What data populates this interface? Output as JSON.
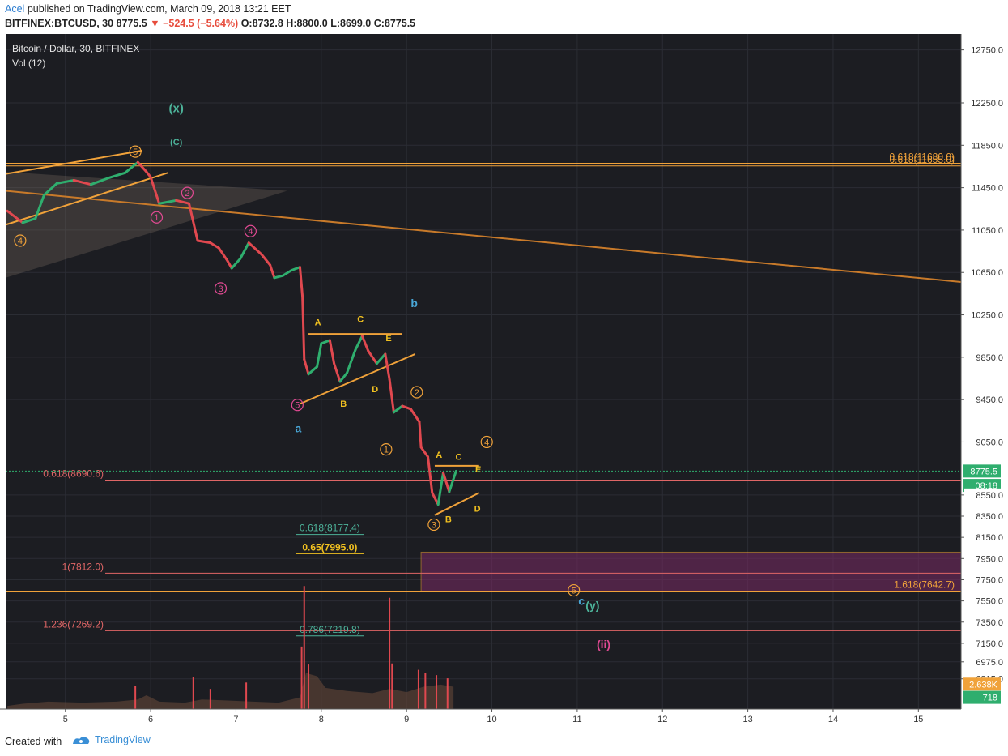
{
  "header": {
    "author": "Acel",
    "published": "published on TradingView.com, March 09, 2018 13:21 EET",
    "symbol": "BITFINEX:BTCUSD, 30",
    "last": "8775.5",
    "change": "▼ −524.5 (−5.64%)",
    "ohlc": "O:8732.8 H:8800.0 L:8699.0 C:8775.5"
  },
  "footer": {
    "created": "Created with",
    "brand": "TradingView"
  },
  "colors": {
    "up": "#2fae6e",
    "down": "#e0484f",
    "orange": "#f0a23a",
    "fib_red": "#e06666",
    "teal": "#4db39a",
    "magenta": "#e24a93",
    "blue": "#49a6d6",
    "bg": "#1c1d22"
  },
  "chart_data": {
    "type": "candlestick",
    "title": "Bitcoin / Dollar, 30, BITFINEX",
    "volume_label": "Vol (12)",
    "ylim": [
      6530,
      12900
    ],
    "xlim": [
      4.3,
      15.5
    ],
    "x_ticks": [
      "5",
      "6",
      "7",
      "8",
      "9",
      "10",
      "11",
      "12",
      "13",
      "14",
      "15"
    ],
    "y_ticks": [
      "12750.0",
      "12250.0",
      "11850.0",
      "11450.0",
      "11050.0",
      "10650.0",
      "10250.0",
      "9850.0",
      "9450.0",
      "9050.0",
      "8550.0",
      "8350.0",
      "8150.0",
      "7950.0",
      "7750.0",
      "7550.0",
      "7350.0",
      "7150.0",
      "6975.0",
      "6815.0"
    ],
    "price_badges": [
      {
        "label": "8775.5",
        "value": 8775.5,
        "color": "#2fae6e"
      },
      {
        "label": "08:18",
        "value": 8640,
        "color": "#2fae6e"
      },
      {
        "label": "8550.0",
        "value": 8550,
        "color": "plain"
      },
      {
        "label": "2.638K",
        "value": 6765,
        "color": "#f0a23a"
      },
      {
        "label": "718",
        "value": 6640,
        "color": "#2fae6e"
      }
    ],
    "price_path": [
      [
        4.32,
        11230
      ],
      [
        4.5,
        11120
      ],
      [
        4.65,
        11160
      ],
      [
        4.75,
        11380
      ],
      [
        4.9,
        11490
      ],
      [
        5.1,
        11520
      ],
      [
        5.3,
        11480
      ],
      [
        5.5,
        11540
      ],
      [
        5.7,
        11590
      ],
      [
        5.85,
        11690
      ],
      [
        5.95,
        11600
      ],
      [
        6.0,
        11550
      ],
      [
        6.1,
        11300
      ],
      [
        6.3,
        11330
      ],
      [
        6.45,
        11300
      ],
      [
        6.55,
        10950
      ],
      [
        6.7,
        10930
      ],
      [
        6.8,
        10880
      ],
      [
        6.9,
        10760
      ],
      [
        6.95,
        10690
      ],
      [
        7.05,
        10780
      ],
      [
        7.15,
        10930
      ],
      [
        7.3,
        10820
      ],
      [
        7.4,
        10720
      ],
      [
        7.45,
        10600
      ],
      [
        7.55,
        10620
      ],
      [
        7.65,
        10670
      ],
      [
        7.75,
        10700
      ],
      [
        7.78,
        10420
      ],
      [
        7.8,
        9830
      ],
      [
        7.85,
        9690
      ],
      [
        7.95,
        9760
      ],
      [
        8.0,
        9980
      ],
      [
        8.1,
        10010
      ],
      [
        8.15,
        9790
      ],
      [
        8.22,
        9620
      ],
      [
        8.3,
        9700
      ],
      [
        8.4,
        9920
      ],
      [
        8.48,
        10050
      ],
      [
        8.55,
        9910
      ],
      [
        8.65,
        9790
      ],
      [
        8.75,
        9880
      ],
      [
        8.8,
        9640
      ],
      [
        8.85,
        9330
      ],
      [
        8.95,
        9390
      ],
      [
        9.05,
        9360
      ],
      [
        9.15,
        9240
      ],
      [
        9.17,
        9000
      ],
      [
        9.25,
        8910
      ],
      [
        9.3,
        8570
      ],
      [
        9.37,
        8460
      ],
      [
        9.43,
        8760
      ],
      [
        9.5,
        8580
      ],
      [
        9.58,
        8775
      ]
    ],
    "volume_path": [
      [
        4.32,
        6560
      ],
      [
        4.5,
        6580
      ],
      [
        4.8,
        6600
      ],
      [
        5.2,
        6590
      ],
      [
        5.6,
        6600
      ],
      [
        5.85,
        6620
      ],
      [
        5.95,
        6660
      ],
      [
        6.1,
        6600
      ],
      [
        6.4,
        6590
      ],
      [
        6.6,
        6620
      ],
      [
        6.9,
        6610
      ],
      [
        7.2,
        6600
      ],
      [
        7.5,
        6590
      ],
      [
        7.75,
        6640
      ],
      [
        7.82,
        6870
      ],
      [
        7.95,
        6840
      ],
      [
        8.05,
        6730
      ],
      [
        8.3,
        6700
      ],
      [
        8.6,
        6680
      ],
      [
        8.8,
        6720
      ],
      [
        9.0,
        6690
      ],
      [
        9.2,
        6740
      ],
      [
        9.4,
        6760
      ],
      [
        9.55,
        6740
      ]
    ],
    "volume_spikes": [
      [
        5.82,
        6750
      ],
      [
        6.5,
        6830
      ],
      [
        6.7,
        6720
      ],
      [
        7.12,
        6780
      ],
      [
        7.8,
        7690
      ],
      [
        7.77,
        7120
      ],
      [
        7.85,
        6950
      ],
      [
        8.8,
        7580
      ],
      [
        8.83,
        6960
      ],
      [
        9.14,
        6900
      ],
      [
        9.22,
        6870
      ],
      [
        9.35,
        6850
      ],
      [
        9.48,
        6820
      ]
    ],
    "fib_levels": [
      {
        "label": "0.618(11655.0)",
        "value": 11655,
        "color": "#f0a23a",
        "align": "right",
        "from": 4.3,
        "to": 15.5
      },
      {
        "label": "0.618(11680.0)",
        "value": 11680,
        "color": "#f0a23a",
        "align": "right",
        "from": 4.3,
        "to": 15.5
      },
      {
        "label": "0.618(8690.6)",
        "value": 8690.6,
        "color": "#e06666",
        "align": "left",
        "from": 4.3,
        "to": 15.5
      },
      {
        "label": "0.618(8177.4)",
        "value": 8177.4,
        "color": "#4db39a",
        "align": "mid",
        "from": 7.7,
        "to": 8.5
      },
      {
        "label": "0.65(7995.0)",
        "value": 7995,
        "color": "#f0c020",
        "align": "mid",
        "from": 7.7,
        "to": 8.5
      },
      {
        "label": "1(7812.0)",
        "value": 7812,
        "color": "#e06666",
        "align": "left",
        "from": 4.3,
        "to": 15.5
      },
      {
        "label": "1.618(7642.7)",
        "value": 7642.7,
        "color": "#f0a23a",
        "align": "right",
        "from": 4.3,
        "to": 15.5
      },
      {
        "label": "1.236(7269.2)",
        "value": 7269.2,
        "color": "#e06666",
        "align": "left",
        "from": 4.3,
        "to": 15.5
      },
      {
        "label": "0.786(7219.8)",
        "value": 7219.8,
        "color": "#4db39a",
        "align": "mid",
        "from": 7.7,
        "to": 8.5
      }
    ],
    "target_zone": {
      "x0": 9.17,
      "x1": 15.5,
      "y0": 7640,
      "y1": 8010
    },
    "trendlines": [
      {
        "from": [
          4.3,
          11420
        ],
        "to": [
          15.5,
          10560
        ],
        "color": "#c87a2a"
      },
      {
        "from": [
          4.3,
          11100
        ],
        "to": [
          6.2,
          11590
        ],
        "color": "#f0a23a"
      },
      {
        "from": [
          4.3,
          11580
        ],
        "to": [
          5.9,
          11800
        ],
        "color": "#f0a23a"
      },
      {
        "from": [
          7.85,
          10070
        ],
        "to": [
          8.95,
          10070
        ],
        "color": "#f0a23a"
      },
      {
        "from": [
          7.75,
          9410
        ],
        "to": [
          9.1,
          9880
        ],
        "color": "#f0a23a"
      },
      {
        "from": [
          9.33,
          8825
        ],
        "to": [
          9.85,
          8825
        ],
        "color": "#f0a23a"
      },
      {
        "from": [
          9.33,
          8360
        ],
        "to": [
          9.85,
          8570
        ],
        "color": "#f0a23a"
      }
    ],
    "wave_labels": [
      {
        "text": "(x)",
        "x": 6.3,
        "y": 12200,
        "color": "#4db39a",
        "size": 15,
        "circle": false
      },
      {
        "text": "(C)",
        "x": 6.3,
        "y": 11890,
        "color": "#4db39a",
        "size": 11,
        "circle": false
      },
      {
        "text": "5",
        "x": 5.82,
        "y": 11790,
        "color": "#f0a23a",
        "size": 11,
        "circle": true
      },
      {
        "text": "4",
        "x": 4.47,
        "y": 10950,
        "color": "#f0a23a",
        "size": 11,
        "circle": true
      },
      {
        "text": "1",
        "x": 6.07,
        "y": 11170,
        "color": "#e24a93",
        "size": 11,
        "circle": true
      },
      {
        "text": "2",
        "x": 6.43,
        "y": 11400,
        "color": "#e24a93",
        "size": 11,
        "circle": true
      },
      {
        "text": "3",
        "x": 6.82,
        "y": 10500,
        "color": "#e24a93",
        "size": 11,
        "circle": true
      },
      {
        "text": "4",
        "x": 7.17,
        "y": 11040,
        "color": "#e24a93",
        "size": 11,
        "circle": true
      },
      {
        "text": "5",
        "x": 7.72,
        "y": 9400,
        "color": "#e24a93",
        "size": 11,
        "circle": true
      },
      {
        "text": "a",
        "x": 7.73,
        "y": 9180,
        "color": "#49a6d6",
        "size": 14,
        "circle": false
      },
      {
        "text": "b",
        "x": 9.09,
        "y": 10360,
        "color": "#49a6d6",
        "size": 14,
        "circle": false
      },
      {
        "text": "A",
        "x": 7.96,
        "y": 10190,
        "color": "#f0c020",
        "size": 11,
        "circle": false
      },
      {
        "text": "C",
        "x": 8.46,
        "y": 10220,
        "color": "#f0c020",
        "size": 11,
        "circle": false
      },
      {
        "text": "E",
        "x": 8.79,
        "y": 10040,
        "color": "#f0c020",
        "size": 11,
        "circle": false
      },
      {
        "text": "B",
        "x": 8.26,
        "y": 9420,
        "color": "#f0c020",
        "size": 11,
        "circle": false
      },
      {
        "text": "D",
        "x": 8.63,
        "y": 9560,
        "color": "#f0c020",
        "size": 11,
        "circle": false
      },
      {
        "text": "2",
        "x": 9.12,
        "y": 9520,
        "color": "#f0a23a",
        "size": 11,
        "circle": true
      },
      {
        "text": "1",
        "x": 8.76,
        "y": 8980,
        "color": "#f0a23a",
        "size": 11,
        "circle": true
      },
      {
        "text": "3",
        "x": 9.32,
        "y": 8270,
        "color": "#f0a23a",
        "size": 11,
        "circle": true
      },
      {
        "text": "4",
        "x": 9.94,
        "y": 9050,
        "color": "#f0a23a",
        "size": 11,
        "circle": true
      },
      {
        "text": "A",
        "x": 9.38,
        "y": 8940,
        "color": "#f0c020",
        "size": 11,
        "circle": false
      },
      {
        "text": "C",
        "x": 9.61,
        "y": 8920,
        "color": "#f0c020",
        "size": 11,
        "circle": false
      },
      {
        "text": "E",
        "x": 9.84,
        "y": 8800,
        "color": "#f0c020",
        "size": 11,
        "circle": false
      },
      {
        "text": "B",
        "x": 9.49,
        "y": 8330,
        "color": "#f0c020",
        "size": 11,
        "circle": false
      },
      {
        "text": "D",
        "x": 9.83,
        "y": 8430,
        "color": "#f0c020",
        "size": 11,
        "circle": false
      },
      {
        "text": "5",
        "x": 10.96,
        "y": 7650,
        "color": "#f0a23a",
        "size": 11,
        "circle": true
      },
      {
        "text": "c",
        "x": 11.05,
        "y": 7550,
        "color": "#49a6d6",
        "size": 14,
        "circle": false
      },
      {
        "text": "(y)",
        "x": 11.18,
        "y": 7510,
        "color": "#4db39a",
        "size": 14,
        "circle": false
      },
      {
        "text": "(ii)",
        "x": 11.31,
        "y": 7140,
        "color": "#e24a93",
        "size": 14,
        "circle": false
      }
    ]
  }
}
